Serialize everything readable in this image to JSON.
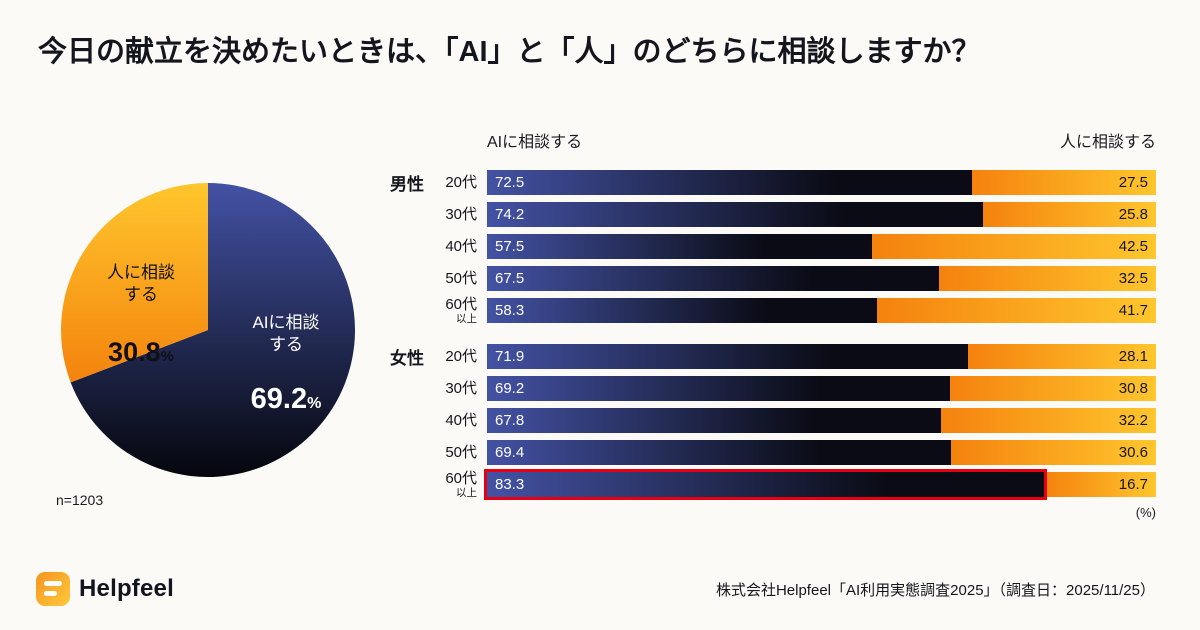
{
  "page": {
    "title": "今日の献立を決めたいときは、「AI」と「人」のどちらに相談しますか？",
    "footer": {
      "logo_text": "Helpfeel",
      "source": "株式会社Helpfeel「AI利用実態調査2025」（調査日：2025/11/25）"
    }
  },
  "pie_labels": {
    "human_label": "人に相談\nする",
    "ai_label": "AIに相談\nする"
  },
  "chart_data": [
    {
      "type": "pie",
      "n_label": "n=1203",
      "unit": "%",
      "slices": [
        {
          "label": "AIに相談する",
          "value": 69.2,
          "color_top": "#4352a4",
          "color_bottom": "#05060c"
        },
        {
          "label": "人に相談する",
          "value": 30.8,
          "color_top": "#ffc62d",
          "color_bottom": "#f4830d"
        }
      ]
    },
    {
      "type": "bar",
      "orientation": "horizontal_stacked",
      "left_header": "AIに相談する",
      "right_header": "人に相談する",
      "unit_label": "(%)",
      "series_names": [
        "AIに相談する",
        "人に相談する"
      ],
      "xlim": [
        0,
        100
      ],
      "groups": [
        {
          "name": "男性",
          "rows": [
            {
              "age": "20代",
              "ai": 72.5,
              "human": 27.5
            },
            {
              "age": "30代",
              "ai": 74.2,
              "human": 25.8
            },
            {
              "age": "40代",
              "ai": 57.5,
              "human": 42.5
            },
            {
              "age": "50代",
              "ai": 67.5,
              "human": 32.5
            },
            {
              "age": "60代",
              "age_sub": "以上",
              "ai": 58.3,
              "human": 41.7
            }
          ]
        },
        {
          "name": "女性",
          "rows": [
            {
              "age": "20代",
              "ai": 71.9,
              "human": 28.1
            },
            {
              "age": "30代",
              "ai": 69.2,
              "human": 30.8
            },
            {
              "age": "40代",
              "ai": 67.8,
              "human": 32.2
            },
            {
              "age": "50代",
              "ai": 69.4,
              "human": 30.6
            },
            {
              "age": "60代",
              "age_sub": "以上",
              "ai": 83.3,
              "human": 16.7,
              "highlight": true
            }
          ]
        }
      ],
      "colors": {
        "ai_gradient": [
          "#4352a4",
          "#0a0b14"
        ],
        "human_gradient": [
          "#f5820e",
          "#ffc62d"
        ],
        "highlight_border": "#e60014"
      }
    }
  ]
}
